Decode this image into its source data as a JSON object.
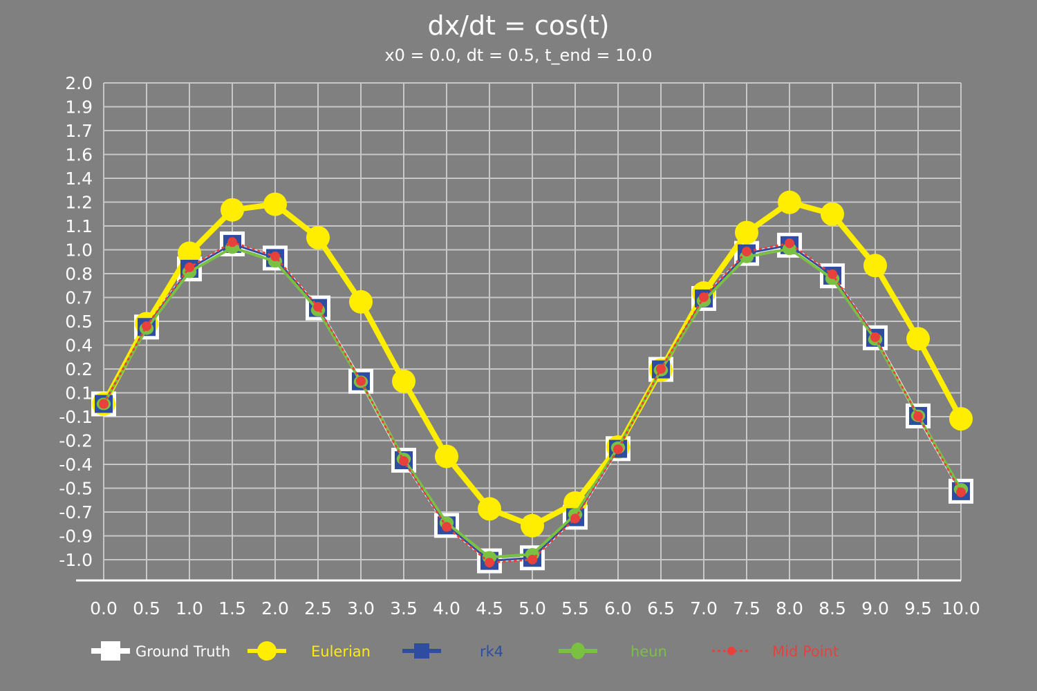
{
  "chart_data": {
    "type": "line",
    "title": "dx/dt = cos(t)",
    "subtitle": "x0 = 0.0, dt = 0.5, t_end = 10.0",
    "xlabel": "",
    "ylabel": "",
    "x": [
      0.0,
      0.5,
      1.0,
      1.5,
      2.0,
      2.5,
      3.0,
      3.5,
      4.0,
      4.5,
      5.0,
      5.5,
      6.0,
      6.5,
      7.0,
      7.5,
      8.0,
      8.5,
      9.0,
      9.5,
      10.0
    ],
    "x_tick_labels": [
      "0.0",
      "0.5",
      "1.0",
      "1.5",
      "2.0",
      "2.5",
      "3.0",
      "3.5",
      "4.0",
      "4.5",
      "5.0",
      "5.5",
      "6.0",
      "6.5",
      "7.0",
      "7.5",
      "8.0",
      "8.5",
      "9.0",
      "9.5",
      "10.0"
    ],
    "y_tick_labels": [
      "2.0",
      "1.9",
      "1.7",
      "1.6",
      "1.4",
      "1.2",
      "1.1",
      "1.0",
      "0.8",
      "0.7",
      "0.5",
      "0.4",
      "0.2",
      "0.1",
      "-0.1",
      "-0.2",
      "-0.4",
      "-0.5",
      "-0.7",
      "-0.9",
      "-1.0"
    ],
    "ylim": [
      -1.1,
      2.0
    ],
    "grid": true,
    "legend_position": "bottom",
    "series": [
      {
        "name": "Ground Truth",
        "color": "#ffffff",
        "marker": "square",
        "values": [
          0.0,
          0.479,
          0.841,
          0.997,
          0.909,
          0.598,
          0.141,
          -0.351,
          -0.757,
          -0.978,
          -0.959,
          -0.706,
          -0.279,
          0.215,
          0.657,
          0.938,
          0.989,
          0.798,
          0.412,
          -0.075,
          -0.544
        ]
      },
      {
        "name": "Eulerian",
        "color": "#ffee00",
        "marker": "circle",
        "values": [
          0.0,
          0.5,
          0.939,
          1.209,
          1.244,
          1.036,
          0.636,
          0.141,
          -0.327,
          -0.654,
          -0.759,
          -0.617,
          -0.269,
          0.211,
          0.691,
          1.068,
          1.256,
          1.183,
          0.862,
          0.406,
          -0.093
        ]
      },
      {
        "name": "rk4",
        "color": "#2e4da0",
        "marker": "square",
        "values": [
          0.0,
          0.479,
          0.842,
          0.997,
          0.909,
          0.598,
          0.141,
          -0.351,
          -0.757,
          -0.978,
          -0.959,
          -0.706,
          -0.28,
          0.215,
          0.657,
          0.938,
          0.989,
          0.799,
          0.412,
          -0.075,
          -0.544
        ]
      },
      {
        "name": "heun",
        "color": "#7ac143",
        "marker": "circle",
        "values": [
          0.0,
          0.469,
          0.822,
          0.974,
          0.888,
          0.584,
          0.138,
          -0.343,
          -0.74,
          -0.956,
          -0.937,
          -0.689,
          -0.273,
          0.21,
          0.642,
          0.916,
          0.966,
          0.78,
          0.402,
          -0.074,
          -0.532
        ]
      },
      {
        "name": "Mid Point",
        "color": "#e8413c",
        "marker": "dot",
        "dashed": true,
        "values": [
          0.0,
          0.485,
          0.851,
          1.008,
          0.919,
          0.605,
          0.142,
          -0.356,
          -0.766,
          -0.989,
          -0.97,
          -0.714,
          -0.283,
          0.218,
          0.665,
          0.949,
          1.001,
          0.808,
          0.416,
          -0.077,
          -0.551
        ]
      }
    ]
  }
}
